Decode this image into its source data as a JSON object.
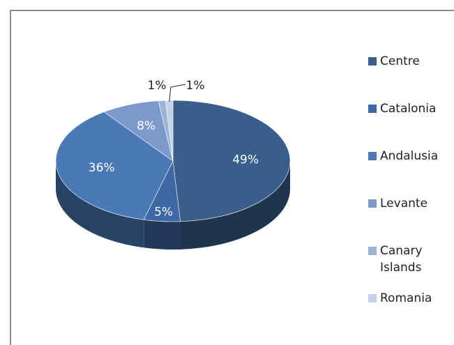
{
  "chart_data": {
    "type": "pie",
    "categories": [
      "Centre",
      "Catalonia",
      "Andalusia",
      "Levante",
      "Canary Islands",
      "Romania"
    ],
    "values": [
      49,
      5,
      36,
      8,
      1,
      1
    ],
    "value_labels": [
      "49%",
      "5%",
      "36%",
      "8%",
      "1%",
      "1%"
    ],
    "colors": [
      "#3a5e8c",
      "#3e68a3",
      "#4a79b6",
      "#7b9acb",
      "#9db4d9",
      "#c3d2ea"
    ],
    "legend": "right"
  }
}
